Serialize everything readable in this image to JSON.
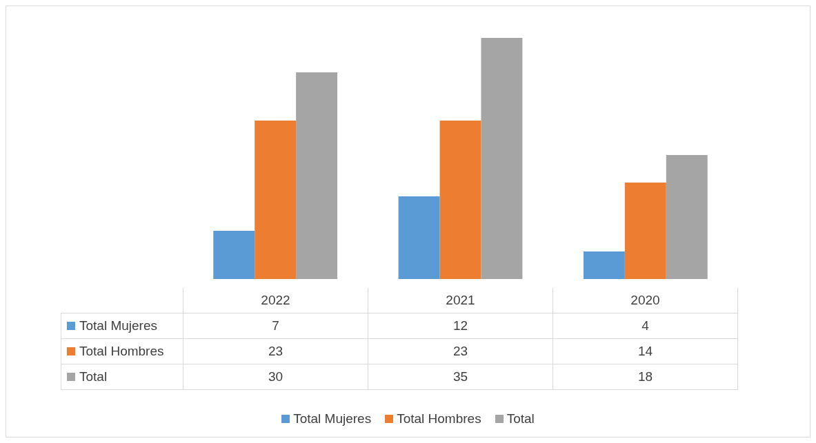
{
  "chart_data": {
    "type": "bar",
    "categories": [
      "2022",
      "2021",
      "2020"
    ],
    "series": [
      {
        "name": "Total Mujeres",
        "color": "#5b9bd5",
        "values": [
          7,
          12,
          4
        ]
      },
      {
        "name": "Total Hombres",
        "color": "#ed7d31",
        "values": [
          23,
          23,
          14
        ]
      },
      {
        "name": "Total",
        "color": "#a5a5a5",
        "values": [
          30,
          35,
          18
        ]
      }
    ],
    "tick_labels": false,
    "data_labels": true,
    "legend": "bottom"
  }
}
